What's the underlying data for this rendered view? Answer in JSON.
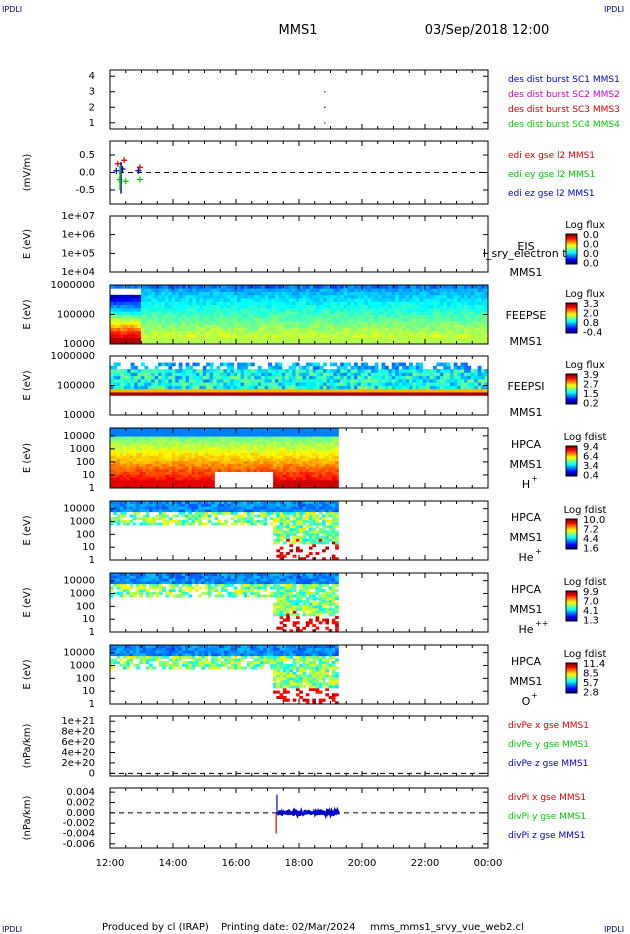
{
  "header": {
    "corner_label": "IPDLI",
    "spacecraft": "MMS1",
    "datetime": "03/Sep/2018 12:00"
  },
  "footer": {
    "produced_by": "Produced by cl (IRAP)",
    "printing_date": "Printing date: 02/Mar/2024",
    "script_name": "mms_mms1_srvy_vue_web2.cl"
  },
  "x_axis": {
    "tick_labels": [
      "12:00",
      "14:00",
      "16:00",
      "18:00",
      "20:00",
      "22:00",
      "00:00"
    ],
    "range_hours": [
      12,
      24
    ]
  },
  "colors": {
    "red": "#dd0000",
    "green": "#00cc00",
    "blue": "#0000cc",
    "magenta": "#cc00cc",
    "dark_blue": "#000099"
  },
  "chart_data": [
    {
      "id": "des_dist",
      "type": "scatter",
      "ylabel": "",
      "y_ticks": [
        "4",
        "3",
        "2",
        "1"
      ],
      "ylim": [
        0.6,
        4.4
      ],
      "legend": [
        {
          "text": "des dist burst SC1 MMS1",
          "color": "#0000cc"
        },
        {
          "text": "des dist burst SC2 MMS2",
          "color": "#cc00cc"
        },
        {
          "text": "des dist burst SC3 MMS3",
          "color": "#dd0000"
        },
        {
          "text": "des dist burst SC4 MMS4",
          "color": "#00cc00"
        }
      ],
      "points": [
        {
          "x": 18.8,
          "y": 3.0
        },
        {
          "x": 18.8,
          "y": 2.0
        },
        {
          "x": 18.8,
          "y": 1.0
        }
      ]
    },
    {
      "id": "edi",
      "type": "scatter",
      "ylabel": "(mV/m)",
      "y_ticks": [
        "0.5",
        "0.0",
        "-0.5"
      ],
      "ylim": [
        -0.9,
        0.9
      ],
      "legend": [
        {
          "text": "edi ex gse l2 MMS1",
          "color": "#dd0000"
        },
        {
          "text": "edi ey gse l2 MMS1",
          "color": "#00cc00"
        },
        {
          "text": "edi ez gse l2 MMS1",
          "color": "#0000cc"
        }
      ],
      "series": [
        {
          "name": "edi ex gse l2 MMS1",
          "color": "#dd0000",
          "x": [
            12.25,
            12.45,
            12.95
          ],
          "y": [
            0.25,
            0.35,
            0.15
          ]
        },
        {
          "name": "edi ey gse l2 MMS1",
          "color": "#00cc00",
          "x": [
            12.3,
            12.5,
            12.95
          ],
          "y": [
            -0.2,
            -0.25,
            -0.2
          ]
        },
        {
          "name": "edi ez gse l2 MMS1",
          "color": "#0000cc",
          "x": [
            12.2,
            12.4,
            12.9
          ],
          "y": [
            0.05,
            0.1,
            0.05
          ]
        }
      ]
    },
    {
      "id": "eis",
      "type": "heatmap",
      "ylabel": "E (eV)",
      "y_ticks": [
        "1e+07",
        "1e+06",
        "1e+05",
        "1e+04"
      ],
      "log_y": true,
      "ylim": [
        10000,
        10000000
      ],
      "label": "EIS",
      "sub_label": "MMS1",
      "overlay_text": "l_sry_electron to",
      "colorbar_title": "Log flux",
      "colorbar_ticks": [
        "0.0",
        "0.0",
        "0.0",
        "0.0"
      ],
      "empty": true
    },
    {
      "id": "feeps_e",
      "type": "heatmap",
      "ylabel": "E (eV)",
      "y_ticks": [
        "1000000",
        "100000",
        "10000"
      ],
      "log_y": true,
      "ylim": [
        10000,
        1000000
      ],
      "label": "FEEPSE",
      "sub_label": "MMS1",
      "colorbar_title": "Log flux",
      "colorbar_ticks": [
        "3.3",
        "2.0",
        "0.8",
        "-0.4"
      ],
      "coverage_hours": [
        12,
        24
      ],
      "low_energy_peak_hours": [
        12,
        13
      ]
    },
    {
      "id": "feeps_i",
      "type": "heatmap",
      "ylabel": "E (eV)",
      "y_ticks": [
        "1000000",
        "100000",
        "10000"
      ],
      "log_y": true,
      "ylim": [
        10000,
        1000000
      ],
      "label": "FEEPSI",
      "sub_label": "MMS1",
      "colorbar_title": "Log flux",
      "colorbar_ticks": [
        "3.9",
        "2.7",
        "1.5",
        "0.2"
      ],
      "coverage_hours": [
        12,
        24
      ]
    },
    {
      "id": "hpca_h",
      "type": "heatmap",
      "ylabel": "E (eV)",
      "y_ticks": [
        "10000",
        "1000",
        "100",
        "10",
        "1"
      ],
      "log_y": true,
      "ylim": [
        1,
        40000
      ],
      "label": "HPCA",
      "sub_label": "MMS1",
      "species": "H",
      "charge": "+",
      "colorbar_title": "Log fdist",
      "colorbar_ticks": [
        "9.4",
        "6.4",
        "3.4",
        "0.4"
      ],
      "coverage_hours": [
        12,
        19.25
      ]
    },
    {
      "id": "hpca_he1",
      "type": "heatmap",
      "ylabel": "E (eV)",
      "y_ticks": [
        "10000",
        "1000",
        "100",
        "10",
        "1"
      ],
      "log_y": true,
      "ylim": [
        1,
        40000
      ],
      "label": "HPCA",
      "sub_label": "MMS1",
      "species": "He",
      "charge": "+",
      "colorbar_title": "Log fdist",
      "colorbar_ticks": [
        "10.0",
        "7.2",
        "4.4",
        "1.6"
      ],
      "coverage_hours": [
        12,
        19.25
      ]
    },
    {
      "id": "hpca_he2",
      "type": "heatmap",
      "ylabel": "E (eV)",
      "y_ticks": [
        "10000",
        "1000",
        "100",
        "10",
        "1"
      ],
      "log_y": true,
      "ylim": [
        1,
        40000
      ],
      "label": "HPCA",
      "sub_label": "MMS1",
      "species": "He",
      "charge": "++",
      "colorbar_title": "Log fdist",
      "colorbar_ticks": [
        "9.9",
        "7.0",
        "4.1",
        "1.3"
      ],
      "coverage_hours": [
        12,
        19.25
      ]
    },
    {
      "id": "hpca_o",
      "type": "heatmap",
      "ylabel": "E (eV)",
      "y_ticks": [
        "10000",
        "1000",
        "100",
        "10",
        "1"
      ],
      "log_y": true,
      "ylim": [
        1,
        40000
      ],
      "label": "HPCA",
      "sub_label": "MMS1",
      "species": "O",
      "charge": "+",
      "colorbar_title": "Log fdist",
      "colorbar_ticks": [
        "11.4",
        "8.5",
        "5.7",
        "2.8"
      ],
      "coverage_hours": [
        12,
        19.25
      ]
    },
    {
      "id": "divpe",
      "type": "line",
      "ylabel": "(nPa/km)",
      "y_ticks": [
        "1e+21",
        "8e+20",
        "6e+20",
        "4e+20",
        "2e+20",
        "0"
      ],
      "y_tick_values": [
        1e+21,
        8e+20,
        6e+20,
        4e+20,
        2e+20,
        0
      ],
      "ylim": [
        -5e+19,
        1.1e+21
      ],
      "legend": [
        {
          "text": "divPe x gse MMS1",
          "color": "#dd0000"
        },
        {
          "text": "divPe y gse MMS1",
          "color": "#00cc00"
        },
        {
          "text": "divPe z gse MMS1",
          "color": "#0000cc"
        }
      ]
    },
    {
      "id": "divpi",
      "type": "line",
      "ylabel": "(nPa/km)",
      "y_ticks": [
        "0.004",
        "0.002",
        "0.000",
        "-0.002",
        "-0.004",
        "-0.006"
      ],
      "y_tick_values": [
        0.004,
        0.002,
        0.0,
        -0.002,
        -0.004,
        -0.006
      ],
      "ylim": [
        -0.0068,
        0.0048
      ],
      "legend": [
        {
          "text": "divPi x gse MMS1",
          "color": "#dd0000"
        },
        {
          "text": "divPi y gse MMS1",
          "color": "#00cc00"
        },
        {
          "text": "divPi z gse MMS1",
          "color": "#0000cc"
        }
      ],
      "coverage_hours": [
        17.25,
        19.25
      ],
      "spike_hour": 17.3,
      "spike_range": [
        -0.004,
        0.0035
      ]
    }
  ]
}
